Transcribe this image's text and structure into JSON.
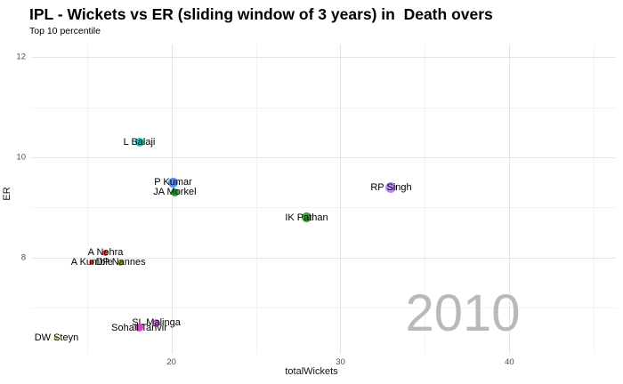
{
  "chart_data": {
    "type": "scatter",
    "title": "IPL - Wickets vs ER (sliding window of 3 years) in  Death overs",
    "subtitle": "Top 10 percentile",
    "xlabel": "totalWickets",
    "ylabel": "ER",
    "frame_label": "2010",
    "xlim": [
      11.7,
      46.3
    ],
    "ylim": [
      6.08,
      12.25
    ],
    "x_major_ticks": [
      20,
      30,
      40
    ],
    "x_minor_ticks": [
      15,
      25,
      35,
      45
    ],
    "y_major_ticks": [
      8,
      10,
      12
    ],
    "y_minor_ticks": [
      7,
      9,
      11
    ],
    "grid": true,
    "legend": "none",
    "colors": {
      "major_grid": "#e4e4e4",
      "minor_grid": "#f2f2f2",
      "tick_text": "#4d4d4d",
      "watermark": "#b9b9b9"
    },
    "points": [
      {
        "label": "L Balaji",
        "x": 18.1,
        "y": 10.3,
        "r": 5.0,
        "color": "#1fc5c9"
      },
      {
        "label": "P Kumar",
        "x": 20.1,
        "y": 9.5,
        "r": 5.5,
        "color": "#5a8dee"
      },
      {
        "label": "JA Morkel",
        "x": 20.2,
        "y": 9.3,
        "r": 4.5,
        "color": "#2ea13c"
      },
      {
        "label": "RP Singh",
        "x": 33.0,
        "y": 9.4,
        "r": 6.0,
        "color": "#bb8bf5"
      },
      {
        "label": "IK Pathan",
        "x": 28.0,
        "y": 8.8,
        "r": 5.5,
        "color": "#3fa435"
      },
      {
        "label": "A Nehra",
        "x": 16.1,
        "y": 8.1,
        "r": 3.5,
        "color": "#e4574e"
      },
      {
        "label": "A Kumble",
        "x": 15.3,
        "y": 7.9,
        "r": 3.0,
        "color": "#d8423b"
      },
      {
        "label": "DP Nannes",
        "x": 17.0,
        "y": 7.9,
        "r": 3.5,
        "color": "#9fa11f"
      },
      {
        "label": "SL Malinga",
        "x": 19.1,
        "y": 6.7,
        "r": 4.5,
        "color": "#dc6bef"
      },
      {
        "label": "Sohail Tanvir",
        "x": 18.1,
        "y": 6.6,
        "r": 4.5,
        "color": "#e73bce"
      },
      {
        "label": "DW Steyn",
        "x": 13.2,
        "y": 6.4,
        "r": 2.0,
        "color": "#a4c639"
      }
    ]
  }
}
